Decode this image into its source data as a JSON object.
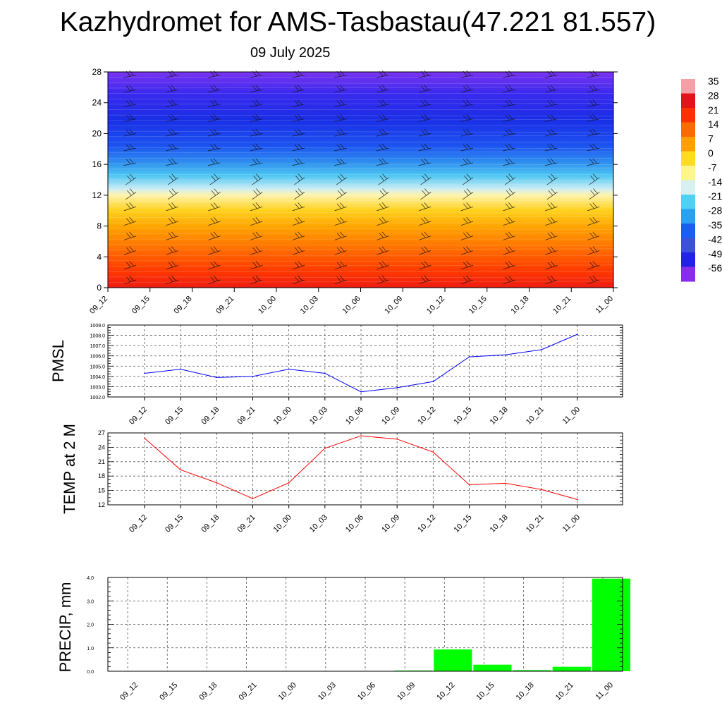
{
  "title": "Kazhydromet for AMS-Tasbastau(47.221 81.557)",
  "date": "09 July 2025",
  "time_labels": [
    "09_12",
    "09_15",
    "09_18",
    "09_21",
    "10_00",
    "10_03",
    "10_06",
    "10_09",
    "10_12",
    "10_15",
    "10_18",
    "10_21",
    "11_00"
  ],
  "colors": {
    "pmsl_line": "#0000ff",
    "temp_line": "#ff0000",
    "precip_bar": "#00ff00"
  },
  "chart_data": [
    {
      "type": "heatmap",
      "title": "Kazhydromet for AMS-Tasbastau(47.221 81.557)",
      "subtitle": "09 July 2025",
      "x": [
        "09_12",
        "09_15",
        "09_18",
        "09_21",
        "10_00",
        "10_03",
        "10_06",
        "10_09",
        "10_12",
        "10_15",
        "10_18",
        "10_21",
        "11_00"
      ],
      "ylim": [
        0,
        28
      ],
      "yticks": [
        0,
        4,
        8,
        12,
        16,
        20,
        24,
        28
      ],
      "colorbar": {
        "labels": [
          "35",
          "28",
          "21",
          "14",
          "7",
          "0",
          "-7",
          "-14",
          "-21",
          "-28",
          "-35",
          "-42",
          "-49",
          "-56"
        ],
        "colors": [
          "#f4a0a6",
          "#e2121b",
          "#ff3000",
          "#ff6a00",
          "#ffa000",
          "#ffdc1e",
          "#fff78c",
          "#d8f0f0",
          "#4fd0f5",
          "#2aa0f0",
          "#1a5ff5",
          "#3c50d8",
          "#2222e6",
          "#8a2cf0"
        ]
      },
      "temperature_field": [
        {
          "height": 0,
          "value": 26
        },
        {
          "height": 4,
          "value": 17
        },
        {
          "height": 8,
          "value": 4
        },
        {
          "height": 12,
          "value": -12
        },
        {
          "height": 16,
          "value": -33
        },
        {
          "height": 20,
          "value": -50
        },
        {
          "height": 24,
          "value": -52
        },
        {
          "height": 28,
          "value": -58
        }
      ],
      "wind_barbs": true
    },
    {
      "type": "line",
      "ylabel": "PMSL",
      "ylim": [
        1002.0,
        1009.0
      ],
      "yticks": [
        "1002.0",
        "1003.0",
        "1004.0",
        "1005.0",
        "1006.0",
        "1007.0",
        "1008.0",
        "1009.0"
      ],
      "x": [
        "09_12",
        "09_15",
        "09_18",
        "09_21",
        "10_00",
        "10_03",
        "10_06",
        "10_09",
        "10_12",
        "10_15",
        "10_18",
        "10_21",
        "11_00"
      ],
      "values": [
        1004.3,
        1004.7,
        1003.9,
        1004.0,
        1004.7,
        1004.3,
        1002.5,
        1002.9,
        1003.5,
        1005.9,
        1006.1,
        1006.6,
        1008.1
      ],
      "grid": true
    },
    {
      "type": "line",
      "ylabel": "TEMP at 2 M",
      "ylim": [
        12,
        27
      ],
      "yticks": [
        "12",
        "15",
        "18",
        "21",
        "24",
        "27"
      ],
      "x": [
        "09_12",
        "09_15",
        "09_18",
        "09_21",
        "10_00",
        "10_03",
        "10_06",
        "10_09",
        "10_12",
        "10_15",
        "10_18",
        "10_21",
        "11_00"
      ],
      "values": [
        25.9,
        19.3,
        16.6,
        13.3,
        16.6,
        23.8,
        26.4,
        25.7,
        23.0,
        16.2,
        16.5,
        15.2,
        13.1
      ],
      "grid": true
    },
    {
      "type": "bar",
      "ylabel": "PRECIP, mm",
      "ylim": [
        0,
        4.0
      ],
      "yticks": [
        "0.0",
        "1.0",
        "2.0",
        "3.0",
        "4.0"
      ],
      "categories": [
        "09_12",
        "09_15",
        "09_18",
        "09_21",
        "10_00",
        "10_03",
        "10_06",
        "10_09",
        "10_12",
        "10_15",
        "10_18",
        "10_21",
        "11_00"
      ],
      "values": [
        0,
        0,
        0,
        0,
        0,
        0,
        0,
        0.03,
        0.93,
        0.28,
        0.05,
        0.19,
        3.95
      ],
      "grid": true
    }
  ]
}
